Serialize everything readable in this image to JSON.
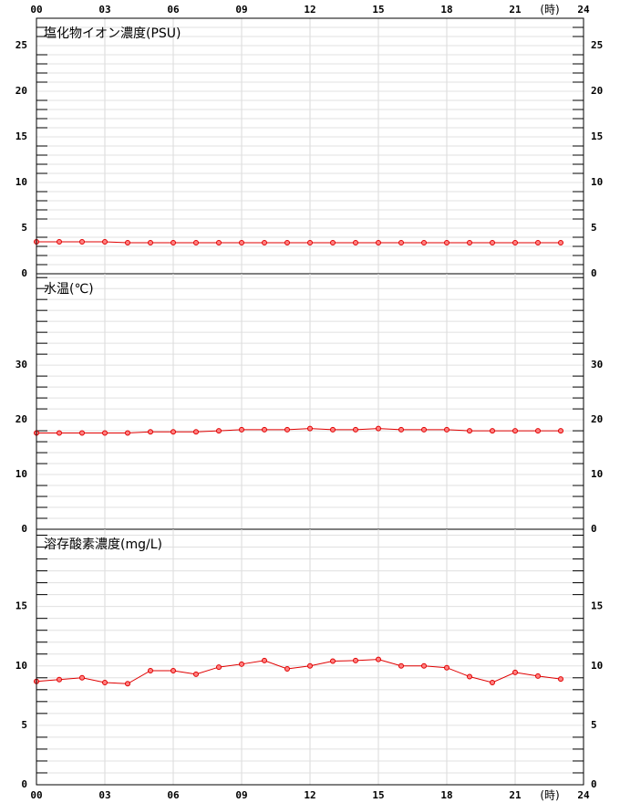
{
  "chart_data": [
    {
      "type": "line",
      "title": "塩化物イオン濃度(PSU)",
      "x_unit_label": "(時)",
      "x": [
        0,
        1,
        2,
        3,
        4,
        5,
        6,
        7,
        8,
        9,
        10,
        11,
        12,
        13,
        14,
        15,
        16,
        17,
        18,
        19,
        20,
        21,
        22,
        23
      ],
      "xlim": [
        0,
        24
      ],
      "xticks": [
        {
          "value": 0,
          "label": "00"
        },
        {
          "value": 3,
          "label": "03"
        },
        {
          "value": 6,
          "label": "06"
        },
        {
          "value": 9,
          "label": "09"
        },
        {
          "value": 12,
          "label": "12"
        },
        {
          "value": 15,
          "label": "15"
        },
        {
          "value": 18,
          "label": "18"
        },
        {
          "value": 21,
          "label": "21"
        },
        {
          "value": 24,
          "label": "24"
        }
      ],
      "series": [
        {
          "color": "#e00000",
          "values": [
            3.5,
            3.5,
            3.5,
            3.5,
            3.4,
            3.4,
            3.4,
            3.4,
            3.4,
            3.4,
            3.4,
            3.4,
            3.4,
            3.4,
            3.4,
            3.4,
            3.4,
            3.4,
            3.4,
            3.4,
            3.4,
            3.4,
            3.4,
            3.4
          ]
        }
      ],
      "ylim": [
        0,
        28
      ],
      "yticks": [
        0,
        5,
        10,
        15,
        20,
        25
      ],
      "yticks_minor": [
        1,
        2,
        3,
        4,
        6,
        7,
        8,
        9,
        11,
        12,
        13,
        14,
        16,
        17,
        18,
        19,
        21,
        22,
        23,
        24,
        26,
        27
      ],
      "grid": true
    },
    {
      "type": "line",
      "title": "水温(℃)",
      "x": [
        0,
        1,
        2,
        3,
        4,
        5,
        6,
        7,
        8,
        9,
        10,
        11,
        12,
        13,
        14,
        15,
        16,
        17,
        18,
        19,
        20,
        21,
        22,
        23
      ],
      "xlim": [
        0,
        24
      ],
      "xticks": [
        0,
        3,
        6,
        9,
        12,
        15,
        18,
        21,
        24
      ],
      "series": [
        {
          "color": "#e00000",
          "values": [
            17.6,
            17.6,
            17.6,
            17.6,
            17.6,
            17.8,
            17.8,
            17.8,
            18.0,
            18.2,
            18.2,
            18.2,
            18.4,
            18.2,
            18.2,
            18.4,
            18.2,
            18.2,
            18.2,
            18.0,
            18.0,
            18.0,
            18.0,
            18.0
          ]
        }
      ],
      "ylim": [
        0,
        46.7
      ],
      "yticks": [
        0,
        10,
        20,
        30
      ],
      "yticks_minor": [
        2,
        4,
        6,
        8,
        12,
        14,
        16,
        18,
        22,
        24,
        26,
        28,
        32,
        34,
        36,
        38,
        40,
        42,
        44,
        46
      ],
      "grid": true
    },
    {
      "type": "line",
      "title": "溶存酸素濃度(mg/L)",
      "x_unit_label": "(時)",
      "x": [
        0,
        1,
        2,
        3,
        4,
        5,
        6,
        7,
        8,
        9,
        10,
        11,
        12,
        13,
        14,
        15,
        16,
        17,
        18,
        19,
        20,
        21,
        22,
        23
      ],
      "xlim": [
        0,
        24
      ],
      "xticks": [
        {
          "value": 0,
          "label": "00"
        },
        {
          "value": 3,
          "label": "03"
        },
        {
          "value": 6,
          "label": "06"
        },
        {
          "value": 9,
          "label": "09"
        },
        {
          "value": 12,
          "label": "12"
        },
        {
          "value": 15,
          "label": "15"
        },
        {
          "value": 18,
          "label": "18"
        },
        {
          "value": 21,
          "label": "21"
        },
        {
          "value": 24,
          "label": "24"
        }
      ],
      "series": [
        {
          "color": "#e00000",
          "values": [
            8.7,
            8.85,
            9.0,
            8.6,
            8.5,
            9.6,
            9.6,
            9.3,
            9.9,
            10.15,
            10.45,
            9.75,
            10.0,
            10.4,
            10.45,
            10.55,
            10.0,
            10.0,
            9.85,
            9.1,
            8.6,
            9.45,
            9.15,
            8.9
          ]
        }
      ],
      "ylim": [
        0,
        21.5
      ],
      "yticks": [
        0,
        5,
        10,
        15
      ],
      "yticks_minor": [
        1,
        2,
        3,
        4,
        6,
        7,
        8,
        9,
        11,
        12,
        13,
        14,
        16,
        17,
        18,
        19,
        20,
        21
      ],
      "grid": true
    }
  ]
}
